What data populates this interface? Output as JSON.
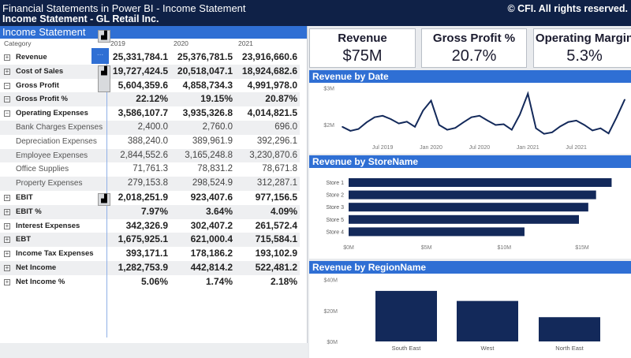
{
  "header": {
    "title": "Financial Statements in Power BI - Income Statement",
    "subtitle": "Income Statement - GL Retail Inc.",
    "copyright": "© CFI. All rights reserved."
  },
  "table": {
    "title": "Income Statement",
    "columns": [
      "Category",
      "2019",
      "2020",
      "2021"
    ],
    "rows": [
      {
        "label": "Revenue",
        "expand": "+",
        "bold": true,
        "values": [
          "25,331,784.1",
          "25,376,781.5",
          "23,916,660.6"
        ]
      },
      {
        "label": "Cost of Sales",
        "expand": "+",
        "bold": true,
        "values": [
          "19,727,424.5",
          "20,518,047.1",
          "18,924,682.6"
        ]
      },
      {
        "label": "Gross Profit",
        "expand": "−",
        "bold": true,
        "values": [
          "5,604,359.6",
          "4,858,734.3",
          "4,991,978.0"
        ]
      },
      {
        "label": "Gross Profit %",
        "expand": "−",
        "bold": true,
        "values": [
          "22.12%",
          "19.15%",
          "20.87%"
        ]
      },
      {
        "label": "Operating Expenses",
        "expand": "−",
        "bold": true,
        "values": [
          "3,586,107.7",
          "3,935,326.8",
          "4,014,821.5"
        ]
      },
      {
        "label": "Bank Charges Expenses",
        "expand": "",
        "bold": false,
        "values": [
          "2,400.0",
          "2,760.0",
          "696.0"
        ]
      },
      {
        "label": "Depreciation Expenses",
        "expand": "",
        "bold": false,
        "values": [
          "388,240.0",
          "389,961.9",
          "392,296.1"
        ]
      },
      {
        "label": "Employee Expenses",
        "expand": "",
        "bold": false,
        "values": [
          "2,844,552.6",
          "3,165,248.8",
          "3,230,870.6"
        ]
      },
      {
        "label": "Office Supplies",
        "expand": "",
        "bold": false,
        "values": [
          "71,761.3",
          "78,831.2",
          "78,671.8"
        ]
      },
      {
        "label": "Property Expenses",
        "expand": "",
        "bold": false,
        "values": [
          "279,153.8",
          "298,524.9",
          "312,287.1"
        ]
      },
      {
        "label": "EBIT",
        "expand": "+",
        "bold": true,
        "values": [
          "2,018,251.9",
          "923,407.6",
          "977,156.5"
        ]
      },
      {
        "label": "EBIT %",
        "expand": "+",
        "bold": true,
        "values": [
          "7.97%",
          "3.64%",
          "4.09%"
        ]
      },
      {
        "label": "Interest Expenses",
        "expand": "+",
        "bold": true,
        "values": [
          "342,326.9",
          "302,407.2",
          "261,572.4"
        ]
      },
      {
        "label": "EBT",
        "expand": "+",
        "bold": true,
        "values": [
          "1,675,925.1",
          "621,000.4",
          "715,584.1"
        ]
      },
      {
        "label": "Income Tax Expenses",
        "expand": "+",
        "bold": true,
        "values": [
          "393,171.1",
          "178,186.2",
          "193,102.9"
        ]
      },
      {
        "label": "Net Income",
        "expand": "+",
        "bold": true,
        "values": [
          "1,282,753.9",
          "442,814.2",
          "522,481.2"
        ]
      },
      {
        "label": "Net Income %",
        "expand": "+",
        "bold": true,
        "values": [
          "5.06%",
          "1.74%",
          "2.18%"
        ]
      }
    ],
    "more_label": "..."
  },
  "kpis": [
    {
      "label": "Revenue",
      "value": "$75M"
    },
    {
      "label": "Gross Profit %",
      "value": "20.7%"
    },
    {
      "label": "Operating Margin",
      "value": "5.3%"
    }
  ],
  "colors": {
    "header": "#0f2147",
    "accent": "#2f6fd4",
    "series": "#13295a"
  },
  "chart_data": [
    {
      "type": "line",
      "title": "Revenue by Date",
      "yticks": [
        "$2M",
        "$3M"
      ],
      "ylim": [
        1.5,
        3.1
      ],
      "xticks": [
        {
          "label": "Jul 2019",
          "x": "2019-07"
        },
        {
          "label": "Jan 2020",
          "x": "2020-01"
        },
        {
          "label": "Jul 2020",
          "x": "2020-07"
        },
        {
          "label": "Jan 2021",
          "x": "2021-01"
        },
        {
          "label": "Jul 2021",
          "x": "2021-07"
        }
      ],
      "x": [
        "2019-02",
        "2019-03",
        "2019-04",
        "2019-05",
        "2019-06",
        "2019-07",
        "2019-08",
        "2019-09",
        "2019-10",
        "2019-11",
        "2019-12",
        "2020-01",
        "2020-02",
        "2020-03",
        "2020-04",
        "2020-05",
        "2020-06",
        "2020-07",
        "2020-08",
        "2020-09",
        "2020-10",
        "2020-11",
        "2020-12",
        "2021-01",
        "2021-02",
        "2021-03",
        "2021-04",
        "2021-05",
        "2021-06",
        "2021-07",
        "2021-08",
        "2021-09",
        "2021-10",
        "2021-11",
        "2021-12",
        "2022-01"
      ],
      "values": [
        1.94,
        1.83,
        1.88,
        2.06,
        2.2,
        2.24,
        2.15,
        2.03,
        2.08,
        1.94,
        2.38,
        2.65,
        1.99,
        1.86,
        1.91,
        2.06,
        2.2,
        2.24,
        2.11,
        1.99,
        2.01,
        1.86,
        2.27,
        2.84,
        1.9,
        1.75,
        1.79,
        1.95,
        2.07,
        2.11,
        1.99,
        1.84,
        1.9,
        1.76,
        2.2,
        2.68
      ],
      "unit": "$M"
    },
    {
      "type": "bar",
      "orientation": "horizontal",
      "title": "Revenue by StoreName",
      "categories": [
        "Store 1",
        "Store 2",
        "Store 3",
        "Store 5",
        "Store 4"
      ],
      "values": [
        16.9,
        15.9,
        15.4,
        14.8,
        11.3
      ],
      "xticks": [
        "$0M",
        "$5M",
        "$10M",
        "$15M"
      ],
      "xlim": [
        0,
        18
      ],
      "unit": "$M"
    },
    {
      "type": "bar",
      "title": "Revenue by RegionName",
      "categories": [
        "South East",
        "West",
        "North East"
      ],
      "values": [
        32.7,
        26.2,
        15.7
      ],
      "yticks": [
        "$0M",
        "$20M",
        "$40M"
      ],
      "ylim": [
        0,
        40
      ],
      "unit": "$M"
    }
  ]
}
